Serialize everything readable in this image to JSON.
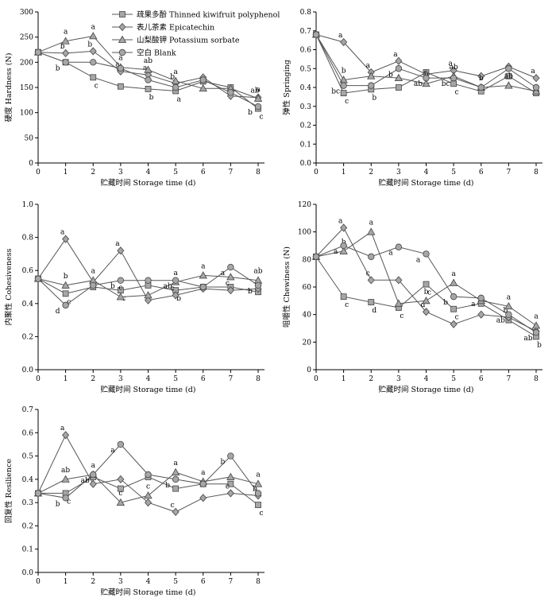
{
  "legend": [
    {
      "series": "polyphenol",
      "marker": "square",
      "label": "疏果多酚 Thinned kiwifruit polyphenol"
    },
    {
      "series": "epicatechin",
      "marker": "diamond",
      "label": "表儿茶素 Epicatechin"
    },
    {
      "series": "sorbate",
      "marker": "triangle",
      "label": "山梨酸钾 Potassium sorbate"
    },
    {
      "series": "blank",
      "marker": "circle",
      "label": "空白 Blank"
    }
  ],
  "colors": {
    "marker_fill": "#a6a6a6",
    "line": "#555555",
    "axis": "#000000"
  },
  "chart_data": [
    {
      "id": "hardness",
      "type": "line",
      "xlabel": "贮藏时间 Storage time (d)",
      "ylabel": "硬度 Hardness (N)",
      "x": [
        0,
        1,
        2,
        3,
        4,
        5,
        6,
        7,
        8
      ],
      "xlim": [
        0,
        8
      ],
      "ylim": [
        0,
        300
      ],
      "yticks": [
        0,
        50,
        100,
        150,
        200,
        250,
        300
      ],
      "series": [
        {
          "key": "polyphenol",
          "marker": "square",
          "values": [
            220,
            200,
            170,
            152,
            147,
            143,
            162,
            150,
            108
          ],
          "sig": [
            "",
            "",
            "c",
            "",
            "b",
            "a",
            "",
            "",
            "c"
          ]
        },
        {
          "key": "epicatechin",
          "marker": "diamond",
          "values": [
            220,
            218,
            222,
            182,
            175,
            158,
            170,
            133,
            130
          ],
          "sig": [
            "",
            "b",
            "b",
            "a",
            "a",
            "b",
            "",
            "",
            "ab"
          ]
        },
        {
          "key": "sorbate",
          "marker": "triangle",
          "values": [
            220,
            242,
            252,
            190,
            185,
            163,
            148,
            148,
            128
          ],
          "sig": [
            "",
            "a",
            "a",
            "a",
            "ab",
            "a",
            "",
            "",
            "a"
          ]
        },
        {
          "key": "blank",
          "marker": "circle",
          "values": [
            220,
            200,
            200,
            188,
            165,
            150,
            165,
            140,
            112
          ],
          "sig": [
            "",
            "b",
            "",
            "",
            "",
            "",
            "",
            "",
            "b"
          ]
        }
      ]
    },
    {
      "id": "springing",
      "type": "line",
      "xlabel": "贮藏时间 Storage time (d)",
      "ylabel": "弹性 Springing",
      "x": [
        0,
        1,
        2,
        3,
        4,
        5,
        6,
        7,
        8
      ],
      "xlim": [
        0,
        8
      ],
      "ylim": [
        0,
        0.8
      ],
      "yticks": [
        0,
        0.1,
        0.2,
        0.3,
        0.4,
        0.5,
        0.6,
        0.7,
        0.8
      ],
      "series": [
        {
          "key": "polyphenol",
          "marker": "square",
          "values": [
            0.68,
            0.37,
            0.39,
            0.4,
            0.48,
            0.42,
            0.38,
            0.46,
            0.37
          ],
          "sig": [
            "",
            "c",
            "b",
            "",
            "",
            "c",
            "",
            "",
            ""
          ]
        },
        {
          "key": "epicatechin",
          "marker": "diamond",
          "values": [
            0.68,
            0.64,
            0.48,
            0.54,
            0.47,
            0.49,
            0.46,
            0.51,
            0.45
          ],
          "sig": [
            "",
            "a",
            "a",
            "a",
            "",
            "a",
            "",
            "",
            "a"
          ]
        },
        {
          "key": "sorbate",
          "marker": "triangle",
          "values": [
            0.68,
            0.44,
            0.46,
            0.45,
            0.42,
            0.46,
            0.4,
            0.41,
            0.38
          ],
          "sig": [
            "",
            "b",
            "",
            "",
            "b",
            "ab",
            "b",
            "ab",
            ""
          ]
        },
        {
          "key": "blank",
          "marker": "circle",
          "values": [
            0.68,
            0.41,
            0.41,
            0.5,
            0.45,
            0.45,
            0.4,
            0.5,
            0.4
          ],
          "sig": [
            "",
            "bc",
            "",
            "b",
            "ab",
            "bc",
            "",
            "",
            ""
          ]
        }
      ]
    },
    {
      "id": "cohesiveness",
      "type": "line",
      "xlabel": "贮藏时间 Storage time (d)",
      "ylabel": "内聚性 Cohesiveness",
      "x": [
        0,
        1,
        2,
        3,
        4,
        5,
        6,
        7,
        8
      ],
      "xlim": [
        0,
        8
      ],
      "ylim": [
        0,
        1.0
      ],
      "yticks": [
        0,
        0.2,
        0.4,
        0.6,
        0.8,
        1.0
      ],
      "series": [
        {
          "key": "polyphenol",
          "marker": "square",
          "values": [
            0.55,
            0.46,
            0.5,
            0.48,
            0.51,
            0.48,
            0.5,
            0.5,
            0.47
          ],
          "sig": [
            "",
            "c",
            "",
            "c",
            "",
            "b",
            "",
            "",
            ""
          ]
        },
        {
          "key": "epicatechin",
          "marker": "diamond",
          "values": [
            0.55,
            0.79,
            0.53,
            0.72,
            0.42,
            0.45,
            0.49,
            0.48,
            0.49
          ],
          "sig": [
            "",
            "a",
            "",
            "a",
            "",
            "c",
            "",
            "c",
            ""
          ]
        },
        {
          "key": "sorbate",
          "marker": "triangle",
          "values": [
            0.55,
            0.51,
            0.54,
            0.44,
            0.45,
            0.53,
            0.57,
            0.56,
            0.54
          ],
          "sig": [
            "",
            "b",
            "a",
            "c",
            "",
            "a",
            "a",
            "",
            "ab"
          ]
        },
        {
          "key": "blank",
          "marker": "circle",
          "values": [
            0.55,
            0.39,
            0.51,
            0.54,
            0.54,
            0.54,
            0.5,
            0.62,
            0.51
          ],
          "sig": [
            "",
            "d",
            "",
            "b",
            "",
            "ab",
            "",
            "a",
            "b"
          ]
        }
      ]
    },
    {
      "id": "chewiness",
      "type": "line",
      "xlabel": "贮藏时间 Storage time (d)",
      "ylabel": "咀嚼性 Chewiness (N)",
      "x": [
        0,
        1,
        2,
        3,
        4,
        5,
        6,
        7,
        8
      ],
      "xlim": [
        0,
        8
      ],
      "ylim": [
        0,
        120
      ],
      "yticks": [
        0,
        20,
        40,
        60,
        80,
        100,
        120
      ],
      "series": [
        {
          "key": "polyphenol",
          "marker": "square",
          "values": [
            82,
            53,
            49,
            45,
            62,
            44,
            48,
            36,
            24
          ],
          "sig": [
            "",
            "c",
            "d",
            "c",
            "c",
            "c",
            "",
            "",
            "b"
          ]
        },
        {
          "key": "epicatechin",
          "marker": "diamond",
          "values": [
            82,
            103,
            65,
            65,
            42,
            33,
            40,
            38,
            28
          ],
          "sig": [
            "",
            "a",
            "c",
            "",
            "d",
            "",
            "",
            "b",
            ""
          ]
        },
        {
          "key": "sorbate",
          "marker": "triangle",
          "values": [
            82,
            86,
            100,
            48,
            50,
            63,
            50,
            46,
            32
          ],
          "sig": [
            "",
            "b",
            "a",
            "",
            "b",
            "a",
            "",
            "a",
            "a"
          ]
        },
        {
          "key": "blank",
          "marker": "circle",
          "values": [
            82,
            90,
            82,
            89,
            84,
            53,
            52,
            40,
            27
          ],
          "sig": [
            "",
            "a",
            "",
            "a",
            "a",
            "b",
            "a",
            "ab",
            "ab"
          ]
        }
      ]
    },
    {
      "id": "resilience",
      "type": "line",
      "xlabel": "贮藏时间 Storage time (d)",
      "ylabel": "回复性 Resilience",
      "x": [
        0,
        1,
        2,
        3,
        4,
        5,
        6,
        7,
        8
      ],
      "xlim": [
        0,
        8
      ],
      "ylim": [
        0,
        0.7
      ],
      "yticks": [
        0,
        0.1,
        0.2,
        0.3,
        0.4,
        0.5,
        0.6,
        0.7
      ],
      "series": [
        {
          "key": "polyphenol",
          "marker": "square",
          "values": [
            0.34,
            0.34,
            0.41,
            0.36,
            0.41,
            0.36,
            0.38,
            0.38,
            0.29
          ],
          "sig": [
            "",
            "c",
            "",
            "",
            "",
            "",
            "",
            "",
            "c"
          ]
        },
        {
          "key": "epicatechin",
          "marker": "diamond",
          "values": [
            0.34,
            0.59,
            0.38,
            0.4,
            0.3,
            0.26,
            0.32,
            0.34,
            0.33
          ],
          "sig": [
            "",
            "a",
            "",
            "",
            "",
            "c",
            "",
            "c",
            "b"
          ]
        },
        {
          "key": "sorbate",
          "marker": "triangle",
          "values": [
            0.34,
            0.4,
            0.42,
            0.3,
            0.33,
            0.43,
            0.39,
            0.41,
            0.38
          ],
          "sig": [
            "",
            "ab",
            "a",
            "c",
            "c",
            "a",
            "a",
            "",
            "a"
          ]
        },
        {
          "key": "blank",
          "marker": "circle",
          "values": [
            0.34,
            0.32,
            0.42,
            0.55,
            0.42,
            0.4,
            0.38,
            0.5,
            0.34
          ],
          "sig": [
            "",
            "b",
            "ab",
            "a",
            "",
            "b",
            "",
            "b",
            ""
          ]
        }
      ]
    }
  ]
}
